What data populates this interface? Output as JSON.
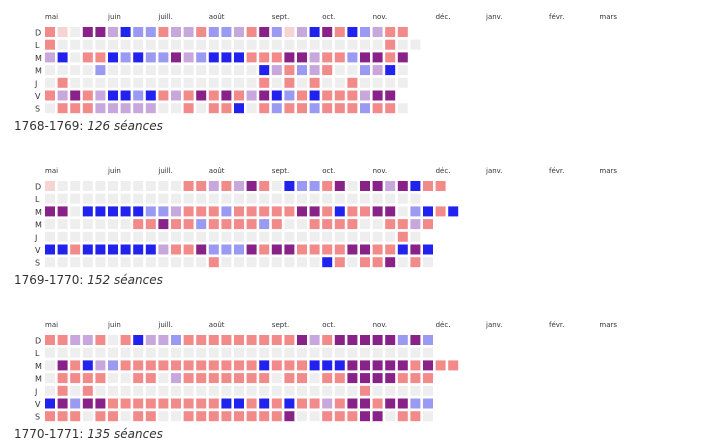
{
  "day_labels": [
    "D",
    "L",
    "M",
    "M",
    "J",
    "V",
    "S"
  ],
  "colors": {
    "empty": "#eeeeee",
    "blue_strong": "#2222ee",
    "red_strong": "#ee2222",
    "purple_strong": "#882288"
  },
  "chart_data": [
    {
      "type": "heatmap",
      "season": "1768-1769",
      "sessions": "126 séances",
      "months": [
        "mai",
        "juin",
        "juill.",
        "août",
        "sept.",
        "oct.",
        "nov.",
        "déc.",
        "janv.",
        "févr.",
        "mars"
      ],
      "month_start_weeks": [
        0,
        5,
        9,
        13,
        18,
        22,
        26,
        31,
        35,
        40,
        44
      ],
      "rows": {
        "D": "RL0PPpBbbRppRbbpRPbLpBPRBbpRR",
        "L": "R00000000000000000000000000R00",
        "M": "pB0RRBbBbbPpbBBBRRRPPpRRbPPRP",
        "M2": "0000b000000000000BpRbpR00bpB0",
        "J": "0R000000000000000R0R0R00R0000",
        "V": "RpPRpBBbBRpRPRPRpPBbRBRRRpPP",
        "S": "0RRRppppp00R0RRB0RbRRbRRRbRR0"
      }
    },
    {
      "type": "heatmap",
      "season": "1769-1770",
      "sessions": "152 séances",
      "months": [
        "mai",
        "juin",
        "juill.",
        "août",
        "sept.",
        "oct.",
        "nov.",
        "déc.",
        "janv.",
        "févr.",
        "mars"
      ],
      "month_start_weeks": [
        0,
        5,
        9,
        13,
        18,
        22,
        26,
        31,
        35,
        40,
        44
      ],
      "rows": {
        "D": "L0000000000RRpRpPR0BbbRP0PPpPBRR",
        "L": "000000000000000000000000000000",
        "M": "PP0BBBBBbbpRRRbRRRRRPPRBRRPP0bBRB",
        "M2": "0000000RRPRRbRRRRbR00RRRR00RRpR",
        "J": "0000000000000000000000000000R0",
        "V": "BBRBBBBBBpRRPbbbPRPPRRRRPPRRBPB",
        "S": "0000000000000R00000000BR0RRP0R0"
      }
    },
    {
      "type": "heatmap",
      "season": "1770-1771",
      "sessions": "135 séances",
      "months": [
        "mai",
        "juin",
        "juill.",
        "août",
        "sept.",
        "oct.",
        "nov.",
        "déc.",
        "janv.",
        "févr.",
        "mars"
      ],
      "month_start_weeks": [
        0,
        5,
        9,
        13,
        18,
        22,
        26,
        31,
        35,
        40,
        44
      ],
      "rows": {
        "D": "RRppR0RBppbRRRRRRRRRPpRPPPPPbPb",
        "L": "0000000000000000000000000000000",
        "M": "0PRBpbRRRRRRRRRRRBRRRBBBPPPPPRPRR",
        "M2": "0RRRR00RR0pRRRRRRR0RR0RRPPPPRRR",
        "J": "0R0R000000000000000000000R00000",
        "V": "BPbPPRRRRRRRRRBBRBRBRRpRPPRPPbb",
        "S": "RRR0RR0RR00RRRRRRRRP00RRRPP0RR0"
      }
    }
  ]
}
